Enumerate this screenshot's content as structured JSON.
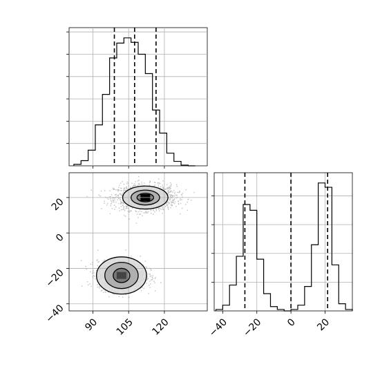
{
  "chart_data": [
    {
      "type": "histogram",
      "panel": "top-left",
      "xlim": [
        80,
        138
      ],
      "grid": true,
      "bin_edges": [
        82,
        85,
        88,
        91,
        94,
        97,
        100,
        103,
        106,
        109,
        112,
        115,
        118,
        121,
        124,
        127,
        130,
        133
      ],
      "counts": [
        2,
        7,
        21,
        55,
        96,
        145,
        165,
        172,
        166,
        150,
        124,
        75,
        44,
        17,
        6,
        1,
        0
      ],
      "quantile_lines": [
        99,
        107.5,
        116.5
      ]
    },
    {
      "type": "scatter",
      "panel": "bottom-left",
      "xlim": [
        80,
        138
      ],
      "ylim": [
        -44,
        34
      ],
      "xticks": [
        90,
        105,
        120
      ],
      "yticks": [
        -40,
        -20,
        0,
        20
      ],
      "xtick_labels": [
        "90",
        "105",
        "120"
      ],
      "ytick_labels": [
        "−40",
        "−20",
        "0",
        "20"
      ],
      "grid": true,
      "clusters": [
        {
          "center": [
            112,
            20
          ],
          "spread": [
            6.5,
            3.6
          ]
        },
        {
          "center": [
            102,
            -24
          ],
          "spread": [
            5,
            4
          ]
        }
      ],
      "contours": [
        {
          "center": [
            112,
            20
          ],
          "radii": [
            [
              9.5,
              6.5
            ],
            [
              6,
              4.2
            ],
            [
              3.5,
              2.4
            ]
          ]
        },
        {
          "center": [
            102,
            -24
          ],
          "radii": [
            [
              10.5,
              10.5
            ],
            [
              7,
              7.4
            ],
            [
              3.5,
              4
            ]
          ]
        }
      ]
    },
    {
      "type": "histogram",
      "panel": "bottom-right",
      "xlim": [
        -45,
        36
      ],
      "xticks": [
        -40,
        -20,
        0,
        20
      ],
      "xtick_labels": [
        "−40",
        "−20",
        "0",
        "20"
      ],
      "grid": true,
      "bin_edges": [
        -44,
        -40,
        -36,
        -32,
        -28,
        -24,
        -20,
        -16,
        -12,
        -8,
        -4,
        0,
        4,
        8,
        12,
        16,
        20,
        24,
        28,
        32,
        36
      ],
      "counts": [
        1,
        4,
        18,
        38,
        74,
        70,
        36,
        12,
        3,
        1,
        0,
        1,
        4,
        17,
        46,
        89,
        86,
        32,
        5,
        1
      ],
      "quantile_lines": [
        -27,
        0,
        21.5
      ]
    }
  ]
}
